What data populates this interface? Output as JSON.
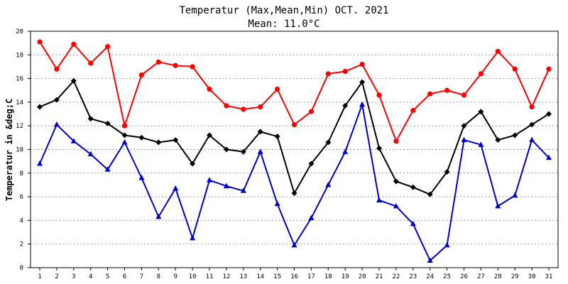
{
  "chart_data": {
    "type": "line",
    "title": "Temperatur (Max,Mean,Min) OCT. 2021",
    "subtitle": "Mean: 11.0°C",
    "ylabel": "Temperatur in &deg;C",
    "xlabel": "",
    "ylim": [
      0,
      20
    ],
    "yticks": [
      0,
      2,
      4,
      6,
      8,
      10,
      12,
      14,
      16,
      18,
      20
    ],
    "grid": true,
    "x": [
      1,
      2,
      3,
      4,
      5,
      6,
      7,
      8,
      9,
      10,
      11,
      12,
      13,
      14,
      15,
      16,
      17,
      18,
      19,
      20,
      21,
      22,
      23,
      24,
      25,
      26,
      27,
      28,
      29,
      30,
      31
    ],
    "series": [
      {
        "key": "max",
        "color": "#ff0000",
        "marker": "circle",
        "values": [
          19.1,
          16.8,
          18.9,
          17.3,
          18.7,
          12.0,
          16.3,
          17.4,
          17.1,
          17.0,
          15.1,
          13.7,
          13.4,
          13.6,
          15.1,
          12.1,
          13.2,
          16.4,
          16.6,
          17.2,
          14.6,
          10.7,
          13.3,
          14.7,
          15.0,
          14.6,
          16.4,
          18.3,
          16.8,
          13.6,
          16.8
        ]
      },
      {
        "key": "mean",
        "color": "#000000",
        "marker": "diamond",
        "values": [
          13.6,
          14.2,
          15.8,
          12.6,
          12.2,
          11.2,
          11.0,
          10.6,
          10.8,
          8.8,
          11.2,
          10.0,
          9.8,
          11.5,
          11.1,
          6.3,
          8.8,
          10.6,
          13.7,
          15.7,
          10.1,
          7.3,
          6.8,
          6.2,
          8.1,
          12.0,
          13.2,
          10.8,
          11.2,
          12.1,
          13.0
        ]
      },
      {
        "key": "min",
        "color": "#0000cc",
        "marker": "triangle",
        "values": [
          8.8,
          12.1,
          10.7,
          9.6,
          8.3,
          10.6,
          7.6,
          4.3,
          6.7,
          2.5,
          7.4,
          6.9,
          6.5,
          9.8,
          5.4,
          1.9,
          4.2,
          7.0,
          9.8,
          13.8,
          5.7,
          5.2,
          3.7,
          0.6,
          1.9,
          10.8,
          10.4,
          5.2,
          6.1,
          10.8,
          9.3
        ]
      }
    ]
  }
}
